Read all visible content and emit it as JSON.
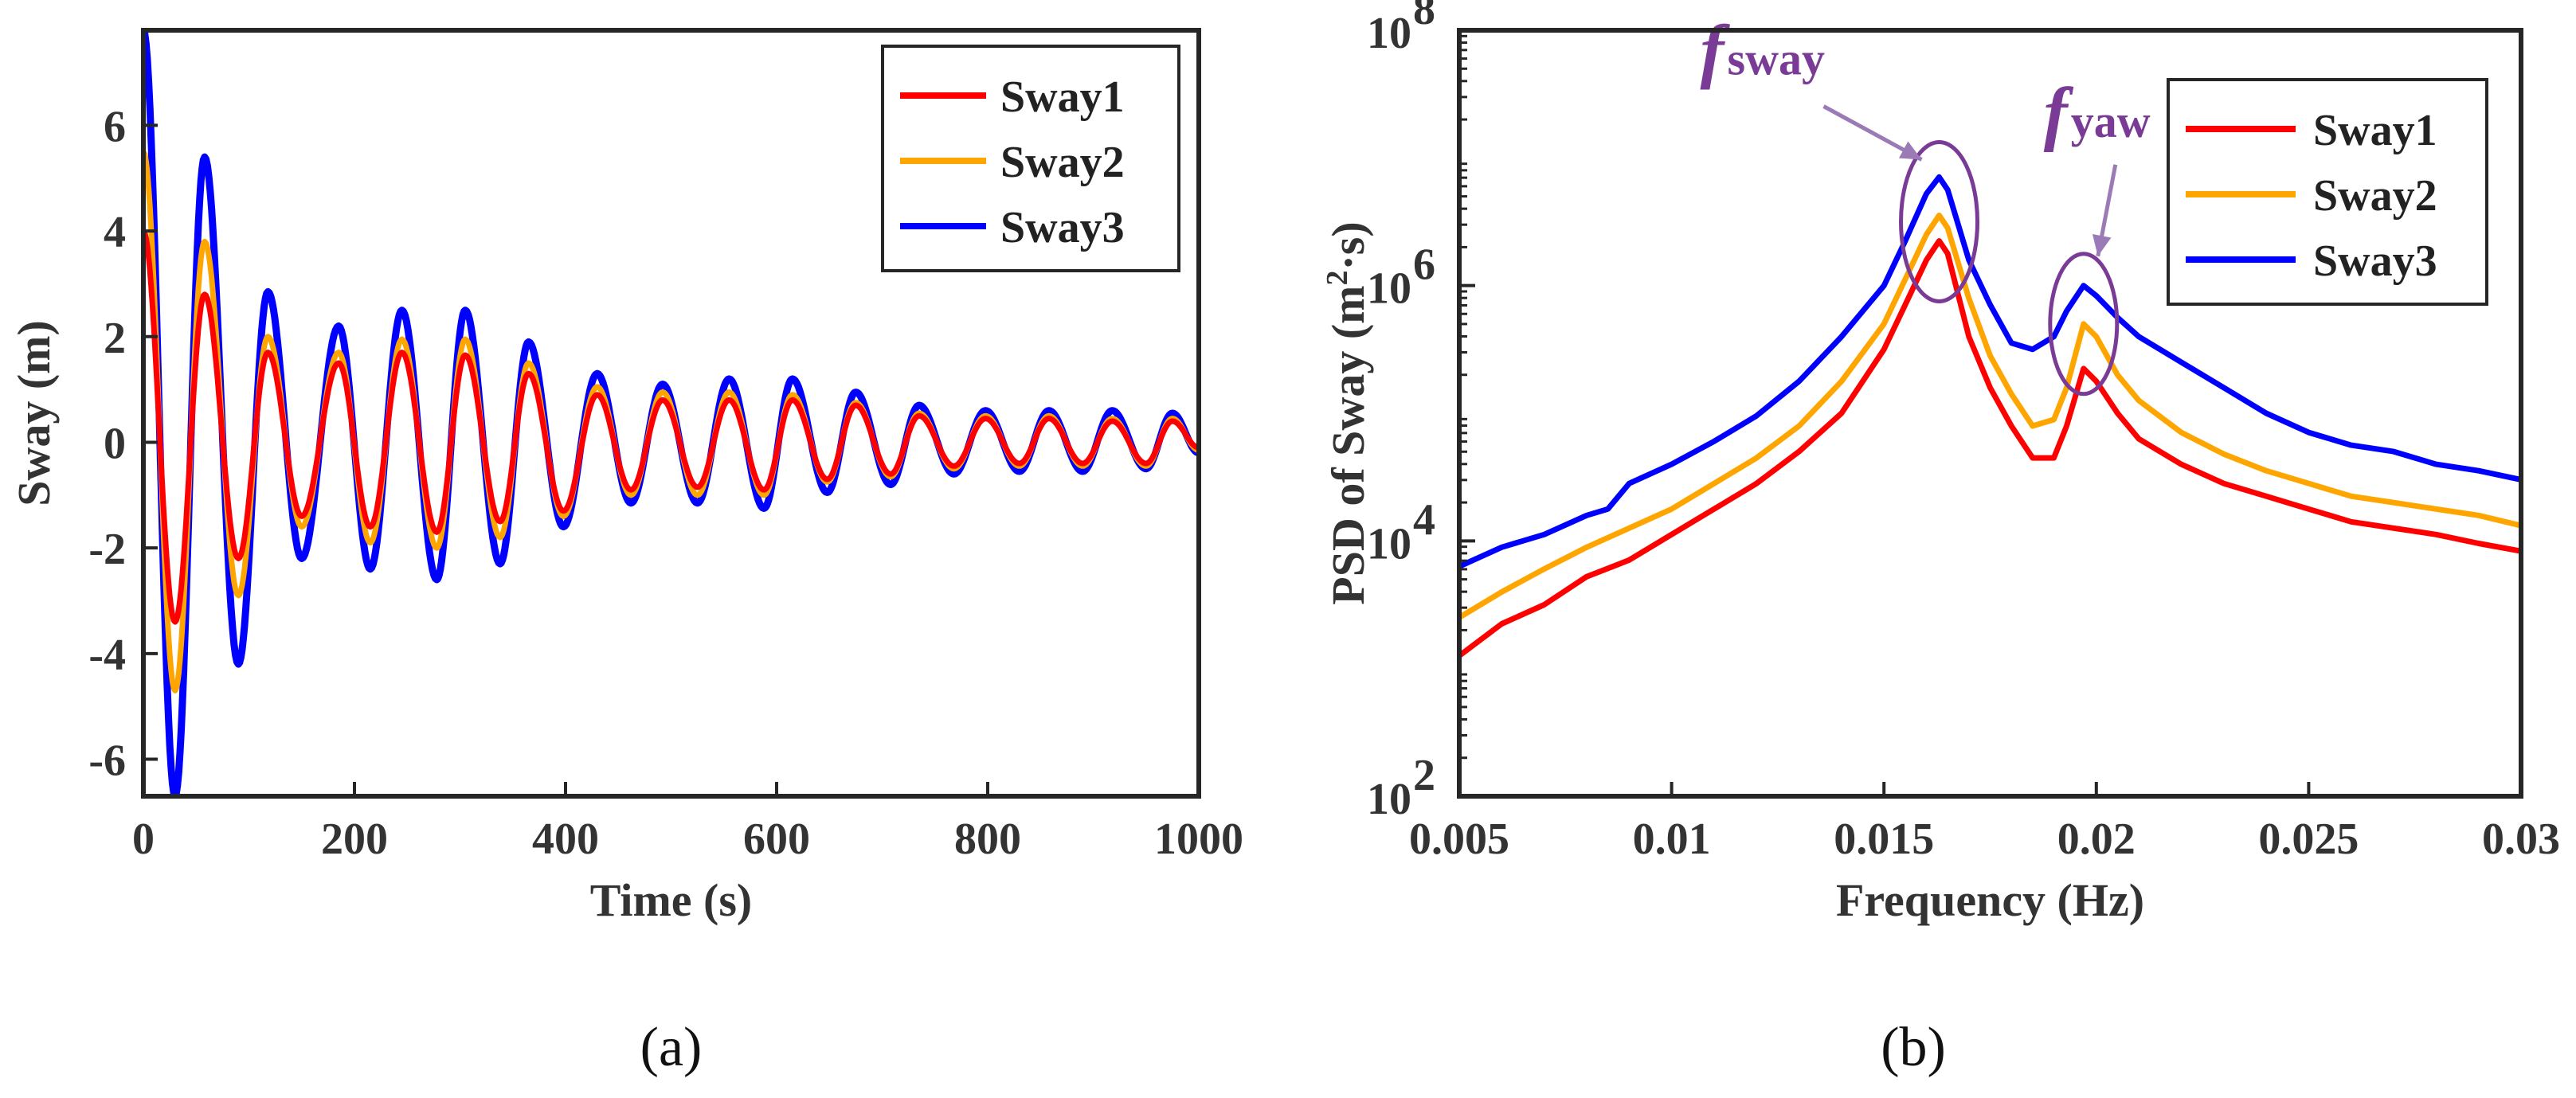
{
  "chart_data": [
    {
      "type": "line",
      "panel_label": "(a)",
      "title": "",
      "xlabel": "Time (s)",
      "ylabel": "Sway (m)",
      "xlim": [
        0,
        1000
      ],
      "ylim": [
        -6.7,
        7.8
      ],
      "xticks": [
        0,
        200,
        400,
        600,
        800,
        1000
      ],
      "xtick_labels": [
        "0",
        "200",
        "400",
        "600",
        "800",
        "1000"
      ],
      "yticks": [
        -6,
        -4,
        -2,
        0,
        2,
        4,
        6
      ],
      "ytick_labels": [
        "-6",
        "-4",
        "-2",
        "0",
        "2",
        "4",
        "6"
      ],
      "legend_position": "top-right",
      "period_s": 60,
      "series": [
        {
          "name": "Sway1",
          "color": "#ff0000",
          "peaks": [
            [
              0,
              4.0
            ],
            [
              30,
              -3.4
            ],
            [
              58,
              2.8
            ],
            [
              90,
              -2.2
            ],
            [
              118,
              1.7
            ],
            [
              150,
              -1.4
            ],
            [
              185,
              1.5
            ],
            [
              215,
              -1.6
            ],
            [
              245,
              1.7
            ],
            [
              278,
              -1.7
            ],
            [
              305,
              1.65
            ],
            [
              338,
              -1.5
            ],
            [
              365,
              1.3
            ],
            [
              398,
              -1.3
            ],
            [
              430,
              0.9
            ],
            [
              462,
              -0.9
            ],
            [
              492,
              0.8
            ],
            [
              525,
              -0.85
            ],
            [
              555,
              0.8
            ],
            [
              588,
              -0.9
            ],
            [
              615,
              0.8
            ],
            [
              648,
              -0.7
            ],
            [
              675,
              0.7
            ],
            [
              708,
              -0.6
            ],
            [
              735,
              0.5
            ],
            [
              768,
              -0.45
            ],
            [
              798,
              0.45
            ],
            [
              830,
              -0.4
            ],
            [
              858,
              0.45
            ],
            [
              890,
              -0.4
            ],
            [
              918,
              0.4
            ],
            [
              950,
              -0.4
            ],
            [
              975,
              0.4
            ],
            [
              1000,
              -0.1
            ]
          ]
        },
        {
          "name": "Sway2",
          "color": "#ffa500",
          "peaks": [
            [
              0,
              5.5
            ],
            [
              30,
              -4.7
            ],
            [
              58,
              3.8
            ],
            [
              90,
              -2.9
            ],
            [
              118,
              2.0
            ],
            [
              150,
              -1.6
            ],
            [
              185,
              1.7
            ],
            [
              215,
              -1.9
            ],
            [
              245,
              1.95
            ],
            [
              278,
              -2.0
            ],
            [
              305,
              1.95
            ],
            [
              338,
              -1.8
            ],
            [
              365,
              1.5
            ],
            [
              398,
              -1.4
            ],
            [
              430,
              1.05
            ],
            [
              462,
              -1.0
            ],
            [
              492,
              0.95
            ],
            [
              525,
              -1.0
            ],
            [
              555,
              0.95
            ],
            [
              588,
              -1.0
            ],
            [
              615,
              0.9
            ],
            [
              648,
              -0.75
            ],
            [
              675,
              0.75
            ],
            [
              708,
              -0.65
            ],
            [
              735,
              0.55
            ],
            [
              768,
              -0.5
            ],
            [
              798,
              0.5
            ],
            [
              830,
              -0.45
            ],
            [
              858,
              0.5
            ],
            [
              890,
              -0.45
            ],
            [
              918,
              0.45
            ],
            [
              950,
              -0.45
            ],
            [
              975,
              0.45
            ],
            [
              1000,
              -0.15
            ]
          ]
        },
        {
          "name": "Sway3",
          "color": "#0000ff",
          "peaks": [
            [
              0,
              7.8
            ],
            [
              30,
              -6.7
            ],
            [
              58,
              5.4
            ],
            [
              90,
              -4.2
            ],
            [
              118,
              2.85
            ],
            [
              150,
              -2.2
            ],
            [
              185,
              2.2
            ],
            [
              215,
              -2.4
            ],
            [
              245,
              2.5
            ],
            [
              278,
              -2.6
            ],
            [
              305,
              2.5
            ],
            [
              338,
              -2.3
            ],
            [
              365,
              1.9
            ],
            [
              398,
              -1.6
            ],
            [
              430,
              1.3
            ],
            [
              462,
              -1.15
            ],
            [
              492,
              1.1
            ],
            [
              525,
              -1.15
            ],
            [
              555,
              1.2
            ],
            [
              588,
              -1.25
            ],
            [
              615,
              1.2
            ],
            [
              648,
              -0.95
            ],
            [
              675,
              0.95
            ],
            [
              708,
              -0.8
            ],
            [
              735,
              0.7
            ],
            [
              768,
              -0.6
            ],
            [
              798,
              0.6
            ],
            [
              830,
              -0.55
            ],
            [
              858,
              0.6
            ],
            [
              890,
              -0.55
            ],
            [
              918,
              0.6
            ],
            [
              950,
              -0.5
            ],
            [
              975,
              0.55
            ],
            [
              1000,
              -0.2
            ]
          ]
        }
      ]
    },
    {
      "type": "line",
      "panel_label": "(b)",
      "title": "",
      "xlabel": "Frequency (Hz)",
      "ylabel_main": "PSD of Sway (m",
      "ylabel_sup": "2",
      "ylabel_tail": "·s)",
      "yscale": "log",
      "xlim": [
        0.005,
        0.03
      ],
      "ylim_exp": [
        2,
        8
      ],
      "xticks": [
        0.005,
        0.01,
        0.015,
        0.02,
        0.025,
        0.03
      ],
      "xtick_labels": [
        "0.005",
        "0.01",
        "0.015",
        "0.02",
        "0.025",
        "0.03"
      ],
      "ytick_exps": [
        2,
        4,
        6,
        8
      ],
      "ytick_base": "10",
      "ytick_sups": [
        "2",
        "4",
        "6",
        "8"
      ],
      "legend_position": "top-right",
      "annotations": [
        {
          "main": "f",
          "sub": "sway",
          "x": 0.0163,
          "log10_y": 6.5
        },
        {
          "main": "f",
          "sub": "yaw",
          "x": 0.0197,
          "log10_y": 5.7
        }
      ],
      "series": [
        {
          "name": "Sway1",
          "color": "#ff0000",
          "points": [
            [
              0.005,
              3.1
            ],
            [
              0.006,
              3.35
            ],
            [
              0.007,
              3.5
            ],
            [
              0.008,
              3.72
            ],
            [
              0.009,
              3.85
            ],
            [
              0.01,
              4.05
            ],
            [
              0.011,
              4.25
            ],
            [
              0.012,
              4.45
            ],
            [
              0.013,
              4.7
            ],
            [
              0.014,
              5.0
            ],
            [
              0.015,
              5.5
            ],
            [
              0.0155,
              5.85
            ],
            [
              0.016,
              6.2
            ],
            [
              0.0163,
              6.35
            ],
            [
              0.0165,
              6.25
            ],
            [
              0.017,
              5.6
            ],
            [
              0.0175,
              5.2
            ],
            [
              0.018,
              4.9
            ],
            [
              0.0185,
              4.65
            ],
            [
              0.019,
              4.65
            ],
            [
              0.0193,
              4.9
            ],
            [
              0.0197,
              5.35
            ],
            [
              0.02,
              5.25
            ],
            [
              0.0205,
              5.0
            ],
            [
              0.021,
              4.8
            ],
            [
              0.022,
              4.6
            ],
            [
              0.023,
              4.45
            ],
            [
              0.024,
              4.35
            ],
            [
              0.025,
              4.25
            ],
            [
              0.026,
              4.15
            ],
            [
              0.027,
              4.1
            ],
            [
              0.028,
              4.05
            ],
            [
              0.029,
              3.98
            ],
            [
              0.03,
              3.92
            ]
          ]
        },
        {
          "name": "Sway2",
          "color": "#ffa500",
          "points": [
            [
              0.005,
              3.4
            ],
            [
              0.006,
              3.6
            ],
            [
              0.007,
              3.78
            ],
            [
              0.008,
              3.95
            ],
            [
              0.009,
              4.1
            ],
            [
              0.01,
              4.25
            ],
            [
              0.011,
              4.45
            ],
            [
              0.012,
              4.65
            ],
            [
              0.013,
              4.9
            ],
            [
              0.014,
              5.25
            ],
            [
              0.015,
              5.7
            ],
            [
              0.0155,
              6.05
            ],
            [
              0.016,
              6.4
            ],
            [
              0.0163,
              6.55
            ],
            [
              0.0165,
              6.45
            ],
            [
              0.017,
              5.9
            ],
            [
              0.0175,
              5.45
            ],
            [
              0.018,
              5.15
            ],
            [
              0.0185,
              4.9
            ],
            [
              0.019,
              4.95
            ],
            [
              0.0193,
              5.2
            ],
            [
              0.0197,
              5.7
            ],
            [
              0.02,
              5.6
            ],
            [
              0.0205,
              5.3
            ],
            [
              0.021,
              5.1
            ],
            [
              0.022,
              4.85
            ],
            [
              0.023,
              4.68
            ],
            [
              0.024,
              4.55
            ],
            [
              0.025,
              4.45
            ],
            [
              0.026,
              4.35
            ],
            [
              0.027,
              4.3
            ],
            [
              0.028,
              4.25
            ],
            [
              0.029,
              4.2
            ],
            [
              0.03,
              4.12
            ]
          ]
        },
        {
          "name": "Sway3",
          "color": "#0000ff",
          "points": [
            [
              0.005,
              3.8
            ],
            [
              0.006,
              3.95
            ],
            [
              0.007,
              4.05
            ],
            [
              0.008,
              4.2
            ],
            [
              0.0085,
              4.25
            ],
            [
              0.009,
              4.45
            ],
            [
              0.01,
              4.6
            ],
            [
              0.011,
              4.78
            ],
            [
              0.012,
              4.98
            ],
            [
              0.013,
              5.25
            ],
            [
              0.014,
              5.6
            ],
            [
              0.015,
              6.0
            ],
            [
              0.0155,
              6.35
            ],
            [
              0.016,
              6.72
            ],
            [
              0.0163,
              6.85
            ],
            [
              0.0165,
              6.75
            ],
            [
              0.017,
              6.2
            ],
            [
              0.0175,
              5.85
            ],
            [
              0.018,
              5.55
            ],
            [
              0.0185,
              5.5
            ],
            [
              0.019,
              5.6
            ],
            [
              0.0193,
              5.8
            ],
            [
              0.0197,
              6.0
            ],
            [
              0.02,
              5.92
            ],
            [
              0.0205,
              5.75
            ],
            [
              0.021,
              5.6
            ],
            [
              0.022,
              5.4
            ],
            [
              0.023,
              5.2
            ],
            [
              0.024,
              5.0
            ],
            [
              0.025,
              4.85
            ],
            [
              0.026,
              4.75
            ],
            [
              0.027,
              4.7
            ],
            [
              0.028,
              4.6
            ],
            [
              0.029,
              4.55
            ],
            [
              0.03,
              4.48
            ]
          ]
        }
      ]
    }
  ]
}
